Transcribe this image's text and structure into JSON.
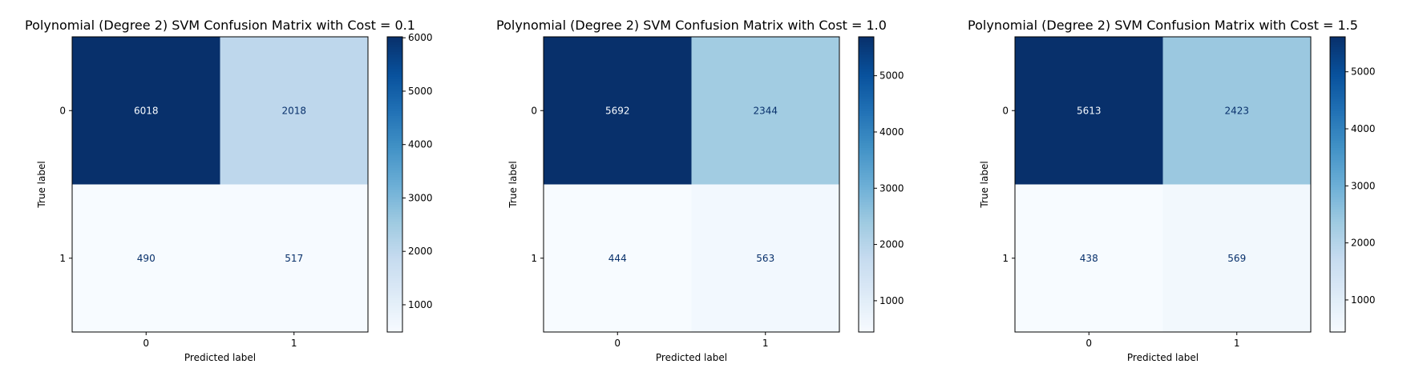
{
  "chart_data": [
    {
      "type": "heatmap",
      "title": "Polynomial (Degree 2) SVM Confusion Matrix with Cost = 0.1",
      "xlabel": "Predicted label",
      "ylabel": "True label",
      "x_ticks": [
        "0",
        "1"
      ],
      "y_ticks": [
        "0",
        "1"
      ],
      "values": [
        [
          6018,
          2018
        ],
        [
          490,
          517
        ]
      ],
      "colormap": "Blues",
      "colorbar": {
        "range": [
          490,
          6018
        ],
        "ticks": [
          1000,
          2000,
          3000,
          4000,
          5000,
          6000
        ]
      }
    },
    {
      "type": "heatmap",
      "title": "Polynomial (Degree 2) SVM Confusion Matrix with Cost = 1.0",
      "xlabel": "Predicted label",
      "ylabel": "True label",
      "x_ticks": [
        "0",
        "1"
      ],
      "y_ticks": [
        "0",
        "1"
      ],
      "values": [
        [
          5692,
          2344
        ],
        [
          444,
          563
        ]
      ],
      "colormap": "Blues",
      "colorbar": {
        "range": [
          444,
          5692
        ],
        "ticks": [
          1000,
          2000,
          3000,
          4000,
          5000
        ]
      }
    },
    {
      "type": "heatmap",
      "title": "Polynomial (Degree 2) SVM Confusion Matrix with Cost = 1.5",
      "xlabel": "Predicted label",
      "ylabel": "True label",
      "x_ticks": [
        "0",
        "1"
      ],
      "y_ticks": [
        "0",
        "1"
      ],
      "values": [
        [
          5613,
          2423
        ],
        [
          438,
          569
        ]
      ],
      "colormap": "Blues",
      "colorbar": {
        "range": [
          438,
          5613
        ],
        "ticks": [
          1000,
          2000,
          3000,
          4000,
          5000
        ]
      }
    }
  ],
  "colors": {
    "light_text": "#f7fbff",
    "dark_text": "#08306b",
    "blues": [
      "#f7fbff",
      "#deebf7",
      "#c6dbef",
      "#9ecae1",
      "#6baed6",
      "#4292c6",
      "#2171b5",
      "#08519c",
      "#08306b"
    ]
  }
}
